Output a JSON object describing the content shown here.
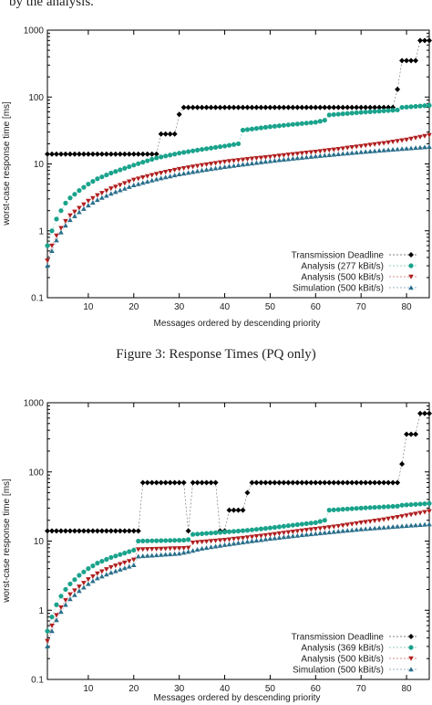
{
  "header_fragment": "by the analysis.",
  "colors": {
    "deadline": "#000000",
    "analysis_fast": "#1aa38c",
    "analysis_500": "#b01e1e",
    "simulation": "#2a6f8c"
  },
  "chart_data": [
    {
      "type": "scatter",
      "caption": "Figure 3: Response Times (PQ only)",
      "xlabel": "Messages ordered by descending priority",
      "ylabel": "worst-case response time [ms]",
      "yscale": "log",
      "xlim": [
        1,
        85
      ],
      "ylim": [
        0.1,
        1000
      ],
      "x_ticks": [
        "10",
        "20",
        "30",
        "40",
        "50",
        "60",
        "70",
        "80"
      ],
      "y_ticks": [
        "0.1",
        "1",
        "10",
        "100",
        "1000"
      ],
      "legend_position": "bottom-right",
      "series": [
        {
          "name": "Transmission Deadline",
          "marker": "diamond",
          "points": [
            [
              1,
              14
            ],
            [
              25,
              14
            ],
            [
              26,
              28
            ],
            [
              29,
              28
            ],
            [
              30,
              55
            ],
            [
              31,
              70
            ],
            [
              77,
              70
            ],
            [
              78,
              130
            ],
            [
              79,
              350
            ],
            [
              82,
              350
            ],
            [
              83,
              700
            ],
            [
              85,
              700
            ]
          ]
        },
        {
          "name": "Analysis (277 kBit/s)",
          "marker": "circle",
          "points": [
            [
              1,
              0.6
            ],
            [
              2,
              1.0
            ],
            [
              3,
              1.5
            ],
            [
              4,
              2.0
            ],
            [
              5,
              2.6
            ],
            [
              6,
              3.1
            ],
            [
              8,
              4.0
            ],
            [
              10,
              5.0
            ],
            [
              12,
              6.0
            ],
            [
              15,
              7.3
            ],
            [
              20,
              9.6
            ],
            [
              25,
              12.3
            ],
            [
              30,
              14.5
            ],
            [
              35,
              16.5
            ],
            [
              40,
              18.5
            ],
            [
              43,
              20
            ],
            [
              44,
              32
            ],
            [
              50,
              36
            ],
            [
              55,
              39
            ],
            [
              60,
              42
            ],
            [
              62,
              45
            ],
            [
              63,
              54
            ],
            [
              70,
              59
            ],
            [
              78,
              64
            ],
            [
              79,
              70
            ],
            [
              85,
              75
            ]
          ]
        },
        {
          "name": "Analysis (500 kBit/s)",
          "marker": "triangle-down",
          "points": [
            [
              1,
              0.36
            ],
            [
              2,
              0.6
            ],
            [
              3,
              0.85
            ],
            [
              4,
              1.1
            ],
            [
              5,
              1.4
            ],
            [
              6,
              1.7
            ],
            [
              8,
              2.2
            ],
            [
              10,
              2.8
            ],
            [
              12,
              3.4
            ],
            [
              15,
              4.3
            ],
            [
              20,
              5.8
            ],
            [
              25,
              7.1
            ],
            [
              30,
              8.4
            ],
            [
              35,
              9.6
            ],
            [
              40,
              10.8
            ],
            [
              45,
              11.8
            ],
            [
              50,
              12.8
            ],
            [
              55,
              14
            ],
            [
              60,
              15.2
            ],
            [
              65,
              16.7
            ],
            [
              70,
              18.5
            ],
            [
              75,
              20.5
            ],
            [
              80,
              23
            ],
            [
              85,
              27
            ]
          ]
        },
        {
          "name": "Simulation (500 kBit/s)",
          "marker": "triangle-up",
          "points": [
            [
              1,
              0.3
            ],
            [
              2,
              0.5
            ],
            [
              3,
              0.72
            ],
            [
              4,
              0.95
            ],
            [
              5,
              1.2
            ],
            [
              6,
              1.45
            ],
            [
              8,
              1.9
            ],
            [
              10,
              2.4
            ],
            [
              12,
              2.9
            ],
            [
              15,
              3.6
            ],
            [
              20,
              4.8
            ],
            [
              25,
              5.9
            ],
            [
              30,
              7.0
            ],
            [
              35,
              8.0
            ],
            [
              40,
              9.0
            ],
            [
              45,
              10.0
            ],
            [
              50,
              11.0
            ],
            [
              55,
              12.0
            ],
            [
              60,
              13.0
            ],
            [
              65,
              14.0
            ],
            [
              70,
              15.0
            ],
            [
              75,
              16.0
            ],
            [
              80,
              17.0
            ],
            [
              85,
              18
            ]
          ]
        }
      ]
    },
    {
      "type": "scatter",
      "caption": "",
      "xlabel": "Messages ordered by descending priority",
      "ylabel": "worst-case response time [ms]",
      "yscale": "log",
      "xlim": [
        1,
        85
      ],
      "ylim": [
        0.1,
        1000
      ],
      "x_ticks": [
        "10",
        "20",
        "30",
        "40",
        "50",
        "60",
        "70",
        "80"
      ],
      "y_ticks": [
        "0.1",
        "1",
        "10",
        "100",
        "1000"
      ],
      "legend_position": "bottom-right",
      "series": [
        {
          "name": "Transmission Deadline",
          "marker": "diamond",
          "points": [
            [
              1,
              14
            ],
            [
              21,
              14
            ],
            [
              22,
              70
            ],
            [
              31,
              70
            ],
            [
              32,
              14
            ],
            [
              33,
              70
            ],
            [
              38,
              70
            ],
            [
              39,
              14
            ],
            [
              40,
              14
            ],
            [
              41,
              28
            ],
            [
              44,
              28
            ],
            [
              45,
              50
            ],
            [
              46,
              70
            ],
            [
              78,
              70
            ],
            [
              79,
              130
            ],
            [
              80,
              350
            ],
            [
              82,
              350
            ],
            [
              83,
              700
            ],
            [
              85,
              700
            ]
          ]
        },
        {
          "name": "Analysis (369 kBit/s)",
          "marker": "circle",
          "points": [
            [
              1,
              0.5
            ],
            [
              2,
              0.8
            ],
            [
              3,
              1.2
            ],
            [
              4,
              1.6
            ],
            [
              5,
              2.0
            ],
            [
              6,
              2.4
            ],
            [
              8,
              3.2
            ],
            [
              10,
              4.0
            ],
            [
              12,
              4.8
            ],
            [
              15,
              5.8
            ],
            [
              20,
              7.4
            ],
            [
              21,
              10
            ],
            [
              31,
              10.3
            ],
            [
              32,
              10.5
            ],
            [
              33,
              12.5
            ],
            [
              40,
              13.5
            ],
            [
              45,
              14.3
            ],
            [
              50,
              15.5
            ],
            [
              55,
              17
            ],
            [
              60,
              18.5
            ],
            [
              62,
              20
            ],
            [
              63,
              28
            ],
            [
              70,
              30
            ],
            [
              78,
              32
            ],
            [
              79,
              33
            ],
            [
              85,
              35
            ]
          ]
        },
        {
          "name": "Analysis (500 kBit/s)",
          "marker": "triangle-down",
          "points": [
            [
              1,
              0.36
            ],
            [
              2,
              0.6
            ],
            [
              3,
              0.85
            ],
            [
              4,
              1.1
            ],
            [
              5,
              1.4
            ],
            [
              6,
              1.7
            ],
            [
              8,
              2.2
            ],
            [
              10,
              2.8
            ],
            [
              12,
              3.4
            ],
            [
              15,
              4.2
            ],
            [
              20,
              5.4
            ],
            [
              21,
              7.6
            ],
            [
              31,
              7.9
            ],
            [
              32,
              8.0
            ],
            [
              33,
              9.5
            ],
            [
              40,
              10.4
            ],
            [
              45,
              11.3
            ],
            [
              50,
              12.4
            ],
            [
              55,
              13.7
            ],
            [
              60,
              15
            ],
            [
              65,
              16.5
            ],
            [
              70,
              18.5
            ],
            [
              75,
              20.5
            ],
            [
              80,
              23.5
            ],
            [
              85,
              27
            ]
          ]
        },
        {
          "name": "Simulation (500 kBit/s)",
          "marker": "triangle-up",
          "points": [
            [
              1,
              0.3
            ],
            [
              2,
              0.5
            ],
            [
              3,
              0.72
            ],
            [
              4,
              0.95
            ],
            [
              5,
              1.2
            ],
            [
              6,
              1.45
            ],
            [
              8,
              1.9
            ],
            [
              10,
              2.4
            ],
            [
              12,
              2.9
            ],
            [
              15,
              3.5
            ],
            [
              20,
              4.5
            ],
            [
              21,
              6.0
            ],
            [
              30,
              6.6
            ],
            [
              32,
              7.0
            ],
            [
              35,
              7.8
            ],
            [
              40,
              8.8
            ],
            [
              45,
              9.8
            ],
            [
              50,
              10.8
            ],
            [
              55,
              11.8
            ],
            [
              60,
              12.8
            ],
            [
              65,
              13.8
            ],
            [
              70,
              14.8
            ],
            [
              75,
              15.7
            ],
            [
              80,
              16.6
            ],
            [
              85,
              17.5
            ]
          ]
        }
      ]
    }
  ]
}
